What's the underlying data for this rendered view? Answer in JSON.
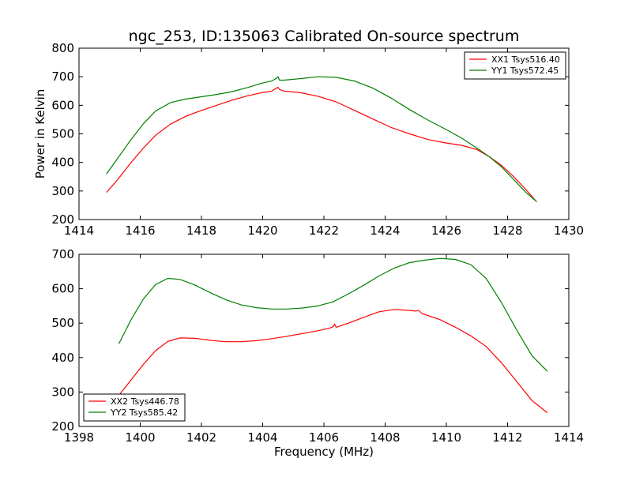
{
  "figure": {
    "title": "ngc_253, ID:135063 Calibrated On-source spectrum"
  },
  "chart_data": [
    {
      "type": "line",
      "title": "ngc_253, ID:135063 Calibrated On-source spectrum",
      "xlabel": "",
      "ylabel": "Power in Kelvin",
      "xlim": [
        1414,
        1430
      ],
      "ylim": [
        200,
        800
      ],
      "xticks": [
        1414,
        1416,
        1418,
        1420,
        1422,
        1424,
        1426,
        1428,
        1430
      ],
      "yticks": [
        200,
        300,
        400,
        500,
        600,
        700,
        800
      ],
      "grid": false,
      "legend_position": "top-right",
      "series": [
        {
          "name": "XX1 Tsys516.40",
          "color": "#ff0000",
          "x": [
            1414.9,
            1415.3,
            1415.7,
            1416.1,
            1416.5,
            1417.0,
            1417.5,
            1418.0,
            1418.5,
            1419.0,
            1419.5,
            1420.0,
            1420.3,
            1420.45,
            1420.5,
            1420.55,
            1420.7,
            1421.2,
            1421.8,
            1422.4,
            1423.0,
            1423.6,
            1424.2,
            1424.8,
            1425.4,
            1426.0,
            1426.5,
            1427.0,
            1427.4,
            1427.8,
            1428.2,
            1428.6,
            1428.95
          ],
          "y": [
            295,
            345,
            400,
            450,
            495,
            535,
            562,
            582,
            600,
            618,
            633,
            645,
            650,
            660,
            663,
            655,
            650,
            645,
            632,
            612,
            582,
            552,
            522,
            500,
            480,
            468,
            460,
            445,
            420,
            390,
            350,
            305,
            262
          ]
        },
        {
          "name": "YY1 Tsys572.45",
          "color": "#008000",
          "x": [
            1414.9,
            1415.3,
            1415.7,
            1416.1,
            1416.5,
            1417.0,
            1417.5,
            1418.0,
            1418.5,
            1419.0,
            1419.5,
            1420.0,
            1420.3,
            1420.45,
            1420.5,
            1420.55,
            1420.7,
            1421.2,
            1421.8,
            1422.4,
            1423.0,
            1423.6,
            1424.2,
            1424.8,
            1425.4,
            1426.0,
            1426.5,
            1427.0,
            1427.4,
            1427.8,
            1428.2,
            1428.6,
            1428.95
          ],
          "y": [
            360,
            420,
            480,
            535,
            580,
            610,
            622,
            630,
            638,
            648,
            662,
            678,
            685,
            695,
            700,
            688,
            688,
            693,
            700,
            698,
            685,
            660,
            625,
            585,
            548,
            515,
            485,
            450,
            420,
            385,
            340,
            295,
            263
          ]
        }
      ]
    },
    {
      "type": "line",
      "title": "",
      "xlabel": "Frequency (MHz)",
      "ylabel": "",
      "xlim": [
        1398,
        1414
      ],
      "ylim": [
        200,
        700
      ],
      "xticks": [
        1398,
        1400,
        1402,
        1404,
        1406,
        1408,
        1410,
        1412,
        1414
      ],
      "yticks": [
        200,
        300,
        400,
        500,
        600,
        700
      ],
      "grid": false,
      "legend_position": "bottom-left",
      "series": [
        {
          "name": "XX2 Tsys446.78",
          "color": "#ff0000",
          "x": [
            1399.3,
            1399.7,
            1400.1,
            1400.5,
            1400.9,
            1401.3,
            1401.8,
            1402.3,
            1402.8,
            1403.3,
            1403.8,
            1404.3,
            1404.8,
            1405.3,
            1405.8,
            1406.2,
            1406.3,
            1406.35,
            1406.4,
            1406.8,
            1407.3,
            1407.8,
            1408.3,
            1408.8,
            1409.0,
            1409.1,
            1409.2,
            1409.8,
            1410.3,
            1410.8,
            1411.3,
            1411.8,
            1412.3,
            1412.8,
            1413.3
          ],
          "y": [
            290,
            335,
            380,
            420,
            447,
            457,
            456,
            450,
            446,
            446,
            449,
            455,
            462,
            470,
            478,
            486,
            490,
            497,
            488,
            500,
            517,
            533,
            540,
            537,
            535,
            537,
            528,
            510,
            488,
            463,
            432,
            385,
            330,
            275,
            240
          ]
        },
        {
          "name": "YY2 Tsys585.42",
          "color": "#008000",
          "x": [
            1399.3,
            1399.7,
            1400.1,
            1400.5,
            1400.9,
            1401.3,
            1401.8,
            1402.3,
            1402.8,
            1403.3,
            1403.8,
            1404.3,
            1404.8,
            1405.3,
            1405.8,
            1406.3,
            1406.8,
            1407.3,
            1407.8,
            1408.3,
            1408.8,
            1409.3,
            1409.8,
            1410.3,
            1410.8,
            1411.3,
            1411.8,
            1412.3,
            1412.8,
            1413.3
          ],
          "y": [
            440,
            510,
            570,
            612,
            630,
            627,
            610,
            588,
            568,
            553,
            545,
            541,
            541,
            544,
            550,
            562,
            585,
            610,
            637,
            660,
            676,
            683,
            688,
            685,
            670,
            630,
            560,
            480,
            405,
            360
          ]
        }
      ]
    }
  ]
}
